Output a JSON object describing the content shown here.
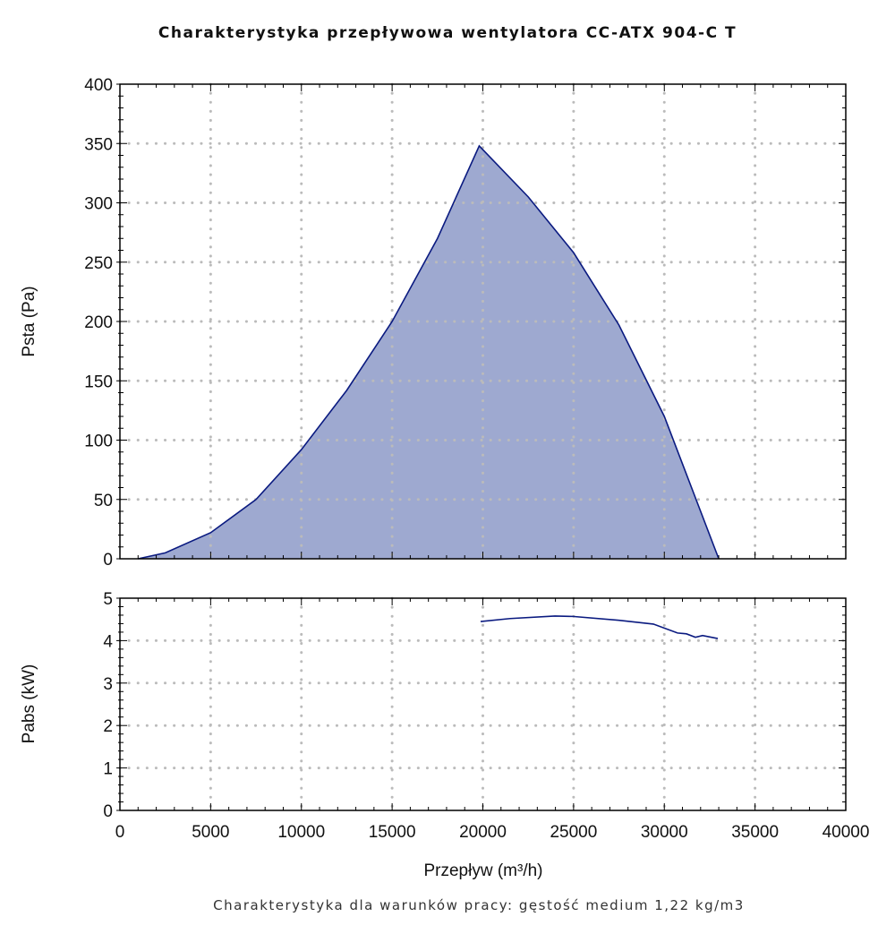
{
  "chart_data": [
    {
      "type": "area",
      "title": "Charakterystyka przepływowa wentylatora CC-ATX 904-C T",
      "xlabel": "Przepływ (m³/h)",
      "ylabel": "Psta (Pa)",
      "xlim": [
        0,
        40000
      ],
      "ylim": [
        0,
        400
      ],
      "xticks": [
        0,
        5000,
        10000,
        15000,
        20000,
        25000,
        30000,
        35000,
        40000
      ],
      "yticks": [
        0,
        50,
        100,
        150,
        200,
        250,
        300,
        350,
        400
      ],
      "grid": true,
      "series": [
        {
          "name": "Psta",
          "fill": "#9ea9d0",
          "line": "#0a1a80",
          "x": [
            1000,
            2500,
            5000,
            7500,
            10000,
            12500,
            15000,
            17500,
            19800,
            22500,
            25000,
            27500,
            30000,
            31500,
            33000
          ],
          "y": [
            0,
            5,
            22,
            50,
            92,
            142,
            200,
            270,
            348,
            305,
            258,
            197,
            120,
            60,
            0
          ]
        }
      ]
    },
    {
      "type": "line",
      "xlabel": "Przepływ (m³/h)",
      "ylabel": "Pabs (kW)",
      "xlim": [
        0,
        40000
      ],
      "ylim": [
        0,
        5
      ],
      "xticks": [
        0,
        5000,
        10000,
        15000,
        20000,
        25000,
        30000,
        35000,
        40000
      ],
      "yticks": [
        0,
        1,
        2,
        3,
        4,
        5
      ],
      "grid": true,
      "series": [
        {
          "name": "Pabs",
          "line": "#0a1a80",
          "x": [
            19877,
            21500,
            23970,
            24957,
            27500,
            29396,
            30728,
            31221,
            31714,
            32108,
            32947
          ],
          "y": [
            4.45,
            4.52,
            4.58,
            4.57,
            4.48,
            4.39,
            4.18,
            4.16,
            4.08,
            4.12,
            4.05
          ]
        }
      ]
    }
  ],
  "footnote": "Charakterystyka dla warunków pracy: gęstość medium 1,22 kg/m3"
}
